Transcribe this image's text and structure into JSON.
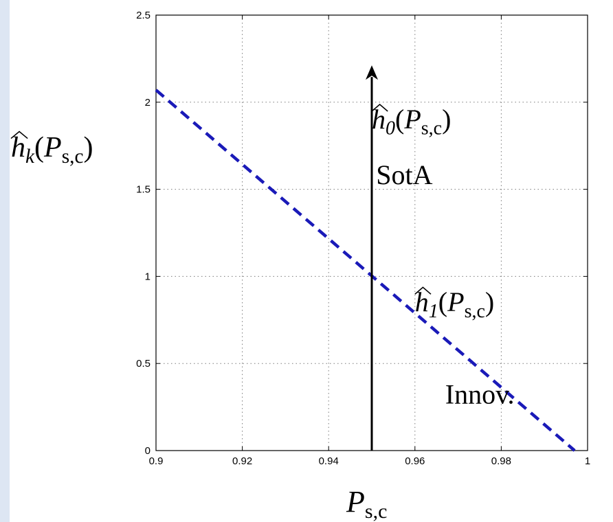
{
  "chart_data": {
    "type": "line",
    "title": "",
    "xlabel": {
      "base": "P",
      "sub": "s,c"
    },
    "ylabel": {
      "base": "h",
      "sub": "k",
      "arg_base": "P",
      "arg_sub": "s,c"
    },
    "xlim": [
      0.9,
      1.0
    ],
    "ylim": [
      0,
      2.5
    ],
    "xticks": [
      0.9,
      0.92,
      0.94,
      0.96,
      0.98,
      1.0
    ],
    "xtick_labels": [
      "0.9",
      "0.92",
      "0.94",
      "0.96",
      "0.98",
      "1"
    ],
    "yticks": [
      0,
      0.5,
      1.0,
      1.5,
      2.0,
      2.5
    ],
    "ytick_labels": [
      "0",
      "0.5",
      "1",
      "1.5",
      "2",
      "2.5"
    ],
    "grid": true,
    "series": [
      {
        "style": "dashed",
        "color": "#1a1ab8",
        "x": [
          0.9,
          0.997
        ],
        "y": [
          2.07,
          0.0
        ]
      },
      {
        "style": "arrow",
        "color": "#000000",
        "x": [
          0.95,
          0.95
        ],
        "y": [
          0.0,
          2.2
        ]
      }
    ],
    "annotations": [
      {
        "id": "h0",
        "base": "h",
        "sub": "0",
        "arg_base": "P",
        "arg_sub": "s,c",
        "x": 0.95,
        "y": 1.85
      },
      {
        "id": "sota",
        "text": "SotA",
        "x": 0.951,
        "y": 1.53
      },
      {
        "id": "h1",
        "base": "h",
        "sub": "1",
        "arg_base": "P",
        "arg_sub": "s,c",
        "x": 0.96,
        "y": 0.8
      },
      {
        "id": "innov",
        "text": "Innov.",
        "x": 0.967,
        "y": 0.27
      }
    ]
  }
}
